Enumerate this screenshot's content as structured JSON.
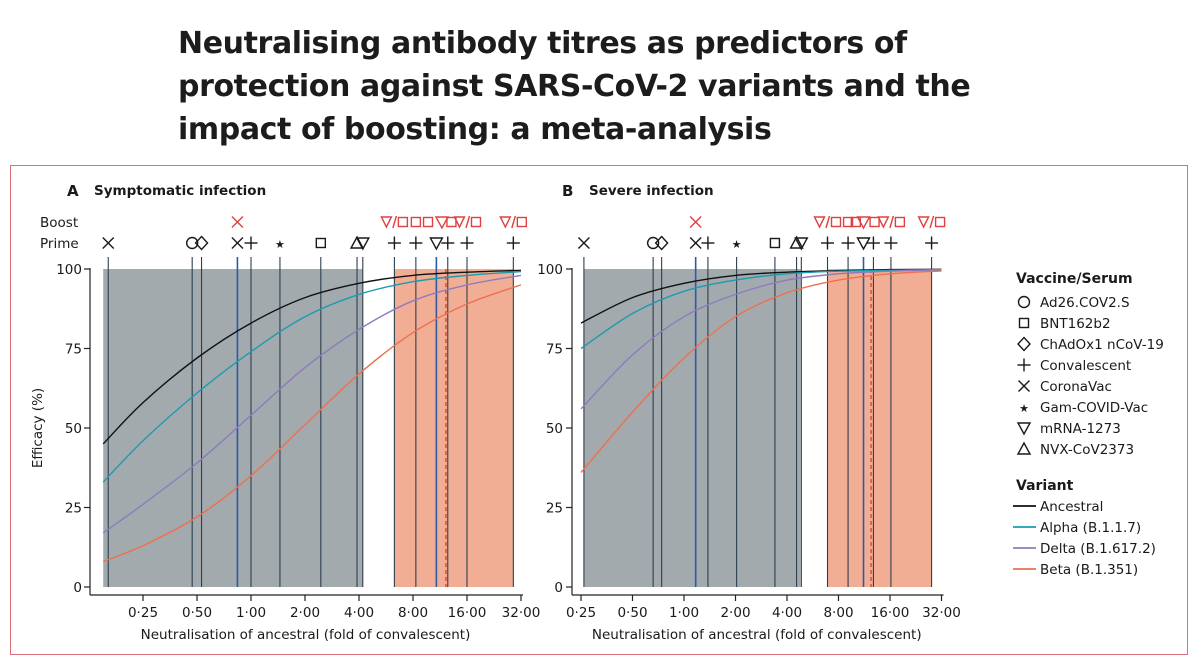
{
  "title": "Neutralising antibody titres as predictors of protection against SARS-CoV-2 variants and the impact of boosting: a meta-analysis",
  "colors": {
    "ancestral": "#111111",
    "alpha": "#1a9bb0",
    "delta": "#8e7bbf",
    "beta": "#ef6f4f",
    "prime_band": "#a3aaae",
    "boost_band": "#f2ae95",
    "vline": "#2d3f4e",
    "alpha_vline": "#2a5aa8",
    "boost_marker": "#e04040",
    "frame": "#d9707a"
  },
  "row_labels": {
    "boost": "Boost",
    "prime": "Prime"
  },
  "vaccine_legend": {
    "title": "Vaccine/Serum",
    "items": [
      {
        "icon": "circle-icon",
        "label": "Ad26.COV2.S"
      },
      {
        "icon": "square-icon",
        "label": "BNT162b2"
      },
      {
        "icon": "diamond-icon",
        "label": "ChAdOx1 nCoV-19"
      },
      {
        "icon": "plus-icon",
        "label": "Convalescent"
      },
      {
        "icon": "cross-icon",
        "label": "CoronaVac"
      },
      {
        "icon": "star-icon",
        "label": "Gam-COVID-Vac"
      },
      {
        "icon": "triangle-down-icon",
        "label": "mRNA-1273"
      },
      {
        "icon": "triangle-up-icon",
        "label": "NVX-CoV2373"
      }
    ]
  },
  "variant_legend": {
    "title": "Variant",
    "items": [
      {
        "key": "ancestral",
        "label": "Ancestral"
      },
      {
        "key": "alpha",
        "label": "Alpha (B.1.1.7)"
      },
      {
        "key": "delta",
        "label": "Delta (B.1.617.2)"
      },
      {
        "key": "beta",
        "label": "Beta (B.1.351)"
      }
    ]
  },
  "panels": [
    {
      "panel_letter": "A",
      "panel_title": "Symptomatic infection",
      "xlabel": "Neutralisation of ancestral (fold of convalescent)",
      "ylabel": "Efficacy (%)"
    },
    {
      "panel_letter": "B",
      "panel_title": "Severe infection",
      "xlabel": "Neutralisation of ancestral (fold of convalescent)",
      "ylabel": ""
    }
  ],
  "chart_data": [
    {
      "type": "line",
      "title": "Symptomatic infection",
      "xlabel": "Neutralisation of ancestral (fold of convalescent)",
      "ylabel": "Efficacy (%)",
      "x_scale": "log2",
      "xlim": [
        0.15,
        32
      ],
      "ylim": [
        0,
        100
      ],
      "xticks": [
        0.25,
        0.5,
        1,
        2,
        4,
        8,
        16,
        32
      ],
      "xtick_labels": [
        "0·25",
        "0·50",
        "1·00",
        "2·00",
        "4·00",
        "8·00",
        "16·00",
        "32·00"
      ],
      "yticks": [
        0,
        25,
        50,
        75,
        100
      ],
      "ytick_labels": [
        "0",
        "25",
        "50",
        "75",
        "100"
      ],
      "series": [
        {
          "name": "Ancestral",
          "color_key": "ancestral",
          "points": [
            [
              0.15,
              45
            ],
            [
              0.25,
              58
            ],
            [
              0.5,
              72
            ],
            [
              1,
              83
            ],
            [
              2,
              91
            ],
            [
              4,
              95.5
            ],
            [
              8,
              98
            ],
            [
              16,
              99
            ],
            [
              32,
              99.6
            ]
          ]
        },
        {
          "name": "Alpha (B.1.1.7)",
          "color_key": "alpha",
          "points": [
            [
              0.15,
              33
            ],
            [
              0.25,
              46
            ],
            [
              0.5,
              61
            ],
            [
              1,
              74
            ],
            [
              2,
              85
            ],
            [
              4,
              92
            ],
            [
              8,
              96
            ],
            [
              16,
              98
            ],
            [
              32,
              99.2
            ]
          ]
        },
        {
          "name": "Delta (B.1.617.2)",
          "color_key": "delta",
          "points": [
            [
              0.15,
              17
            ],
            [
              0.25,
              26
            ],
            [
              0.5,
              39
            ],
            [
              1,
              54
            ],
            [
              2,
              69
            ],
            [
              4,
              81
            ],
            [
              8,
              90
            ],
            [
              16,
              95
            ],
            [
              32,
              98
            ]
          ]
        },
        {
          "name": "Beta (B.1.351)",
          "color_key": "beta",
          "points": [
            [
              0.15,
              8
            ],
            [
              0.25,
              13
            ],
            [
              0.5,
              22
            ],
            [
              1,
              35
            ],
            [
              2,
              51
            ],
            [
              4,
              67
            ],
            [
              8,
              80
            ],
            [
              16,
              89
            ],
            [
              32,
              95
            ]
          ]
        }
      ],
      "prime_band": [
        0.15,
        4.2
      ],
      "boost_band": [
        6.3,
        29
      ],
      "prime_markers": [
        {
          "symbol": "cross",
          "x": 0.16
        },
        {
          "symbol": "circle",
          "x": 0.47
        },
        {
          "symbol": "diamond",
          "x": 0.53
        },
        {
          "symbol": "cross",
          "x": 0.84
        },
        {
          "symbol": "plus",
          "x": 1.0
        },
        {
          "symbol": "star",
          "x": 1.45
        },
        {
          "symbol": "square",
          "x": 2.45
        },
        {
          "symbol": "triangle-up",
          "x": 3.9
        },
        {
          "symbol": "triangle-down",
          "x": 4.2
        },
        {
          "symbol": "plus",
          "x": 6.3
        },
        {
          "symbol": "plus",
          "x": 8.3
        },
        {
          "symbol": "triangle-down",
          "x": 10.8
        },
        {
          "symbol": "plus",
          "x": 12.5
        },
        {
          "symbol": "plus",
          "x": 16
        },
        {
          "symbol": "plus",
          "x": 29
        }
      ],
      "boost_markers": [
        {
          "symbol": "cross",
          "x": 0.84
        },
        {
          "symbol": "triangle-down-square",
          "x": 6.3
        },
        {
          "symbol": "square",
          "x": 8.3
        },
        {
          "symbol": "square",
          "x": 9.7
        },
        {
          "symbol": "triangle-down",
          "x": 11.6
        },
        {
          "symbol": "square",
          "x": 13.1
        },
        {
          "symbol": "triangle-down-square",
          "x": 16.1
        },
        {
          "symbol": "triangle-down-square",
          "x": 29
        }
      ],
      "vlines": [
        0.16,
        0.47,
        0.53,
        0.84,
        1.0,
        1.45,
        2.45,
        3.9,
        4.2,
        6.3,
        8.3,
        10.8,
        12.5,
        16,
        29
      ],
      "alpha_vlines": [
        0.84,
        10.8
      ],
      "dashed_vline": 12.2
    },
    {
      "type": "line",
      "title": "Severe infection",
      "xlabel": "Neutralisation of ancestral (fold of convalescent)",
      "ylabel": "",
      "x_scale": "log2",
      "xlim": [
        0.25,
        32
      ],
      "ylim": [
        0,
        100
      ],
      "xticks": [
        0.25,
        0.5,
        1,
        2,
        4,
        8,
        16,
        32
      ],
      "xtick_labels": [
        "0·25",
        "0·50",
        "1·00",
        "2·00",
        "4·00",
        "8·00",
        "16·00",
        "32·00"
      ],
      "yticks": [
        0,
        25,
        50,
        75,
        100
      ],
      "ytick_labels": [
        "0",
        "25",
        "50",
        "75",
        "100"
      ],
      "series": [
        {
          "name": "Ancestral",
          "color_key": "ancestral",
          "points": [
            [
              0.25,
              83
            ],
            [
              0.5,
              91
            ],
            [
              1,
              95.5
            ],
            [
              2,
              98
            ],
            [
              4,
              99
            ],
            [
              8,
              99.5
            ],
            [
              16,
              99.8
            ],
            [
              32,
              99.9
            ]
          ]
        },
        {
          "name": "Alpha (B.1.1.7)",
          "color_key": "alpha",
          "points": [
            [
              0.25,
              75
            ],
            [
              0.5,
              86
            ],
            [
              1,
              93
            ],
            [
              2,
              96.5
            ],
            [
              4,
              98.5
            ],
            [
              8,
              99.3
            ],
            [
              16,
              99.6
            ],
            [
              32,
              99.8
            ]
          ]
        },
        {
          "name": "Delta (B.1.617.2)",
          "color_key": "delta",
          "points": [
            [
              0.25,
              56
            ],
            [
              0.5,
              73
            ],
            [
              1,
              85
            ],
            [
              2,
              92
            ],
            [
              4,
              96.5
            ],
            [
              8,
              98.5
            ],
            [
              16,
              99.3
            ],
            [
              32,
              99.7
            ]
          ]
        },
        {
          "name": "Beta (B.1.351)",
          "color_key": "beta",
          "points": [
            [
              0.25,
              36
            ],
            [
              0.5,
              55
            ],
            [
              1,
              72
            ],
            [
              2,
              85
            ],
            [
              4,
              92.5
            ],
            [
              8,
              96.5
            ],
            [
              16,
              98.5
            ],
            [
              32,
              99.4
            ]
          ]
        }
      ],
      "prime_band": [
        0.26,
        4.8
      ],
      "boost_band": [
        6.9,
        28
      ],
      "prime_markers": [
        {
          "symbol": "cross",
          "x": 0.26
        },
        {
          "symbol": "circle",
          "x": 0.66
        },
        {
          "symbol": "diamond",
          "x": 0.74
        },
        {
          "symbol": "cross",
          "x": 1.17
        },
        {
          "symbol": "plus",
          "x": 1.38
        },
        {
          "symbol": "star",
          "x": 2.03
        },
        {
          "symbol": "square",
          "x": 3.4
        },
        {
          "symbol": "triangle-up",
          "x": 4.55
        },
        {
          "symbol": "triangle-down",
          "x": 4.85
        },
        {
          "symbol": "plus",
          "x": 6.9
        },
        {
          "symbol": "plus",
          "x": 9.1
        },
        {
          "symbol": "triangle-down",
          "x": 11.2
        },
        {
          "symbol": "plus",
          "x": 12.8
        },
        {
          "symbol": "plus",
          "x": 16.2
        },
        {
          "symbol": "plus",
          "x": 28
        }
      ],
      "boost_markers": [
        {
          "symbol": "cross",
          "x": 1.17
        },
        {
          "symbol": "triangle-down-square",
          "x": 6.9
        },
        {
          "symbol": "square",
          "x": 9.1
        },
        {
          "symbol": "square",
          "x": 10.1
        },
        {
          "symbol": "triangle-down",
          "x": 11.2
        },
        {
          "symbol": "square",
          "x": 13.0
        },
        {
          "symbol": "triangle-down-square",
          "x": 16.3
        },
        {
          "symbol": "triangle-down-square",
          "x": 28
        }
      ],
      "vlines": [
        0.26,
        0.66,
        0.74,
        1.17,
        1.38,
        2.03,
        3.4,
        4.55,
        4.85,
        6.9,
        9.1,
        11.2,
        12.8,
        16.2,
        28
      ],
      "alpha_vlines": [
        1.17,
        11.2
      ],
      "dashed_vline": 12.4
    }
  ]
}
